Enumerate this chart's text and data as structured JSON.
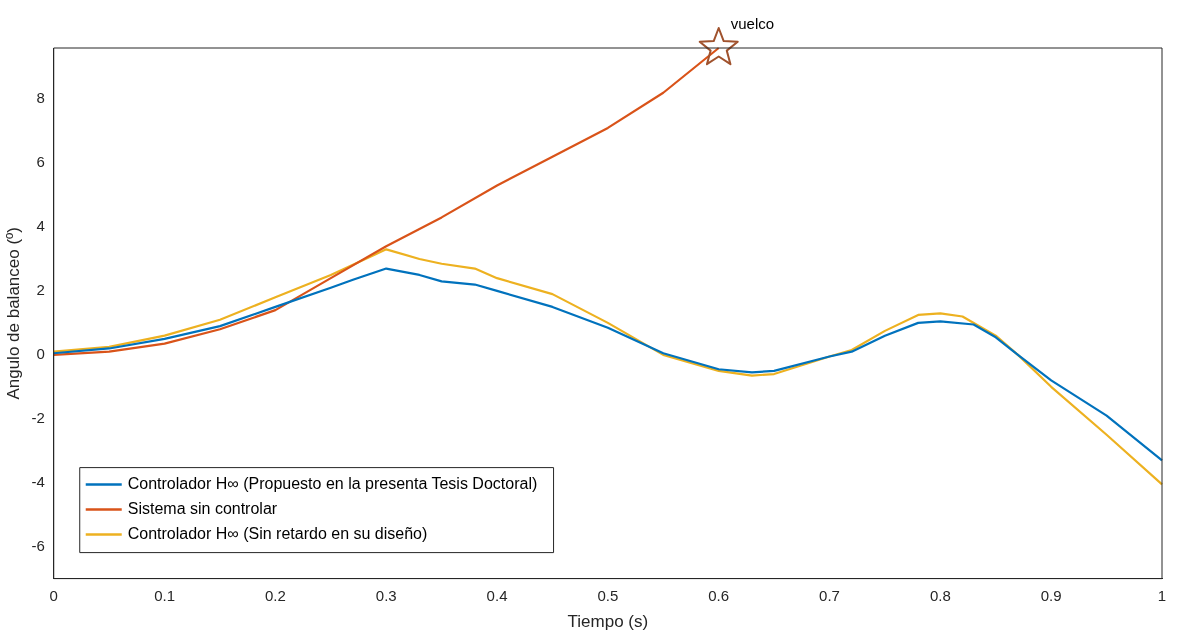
{
  "chart_data": {
    "type": "line",
    "xlabel": "Tiempo (s)",
    "ylabel": "Angulo de balanceo (º)",
    "xlim": [
      0,
      1
    ],
    "xticks": [
      0,
      0.1,
      0.2,
      0.3,
      0.4,
      0.5,
      0.6,
      0.7,
      0.8,
      0.9,
      1
    ],
    "ylim": [
      -7,
      9.6
    ],
    "yticks": [
      -6,
      -4,
      -2,
      0,
      2,
      4,
      6,
      8
    ],
    "grid": false,
    "legend": "bottom left",
    "annotations": [
      {
        "text": "vuelco",
        "x": 0.6,
        "y": 9.6
      }
    ],
    "series": [
      {
        "name": "Controlador H∞ (Propuesto en la presenta Tesis Doctoral)",
        "color": "#0072bd",
        "x": [
          0,
          0.05,
          0.1,
          0.15,
          0.2,
          0.25,
          0.27,
          0.3,
          0.33,
          0.35,
          0.38,
          0.4,
          0.45,
          0.5,
          0.55,
          0.6,
          0.63,
          0.65,
          0.7,
          0.72,
          0.75,
          0.78,
          0.8,
          0.83,
          0.85,
          0.87,
          0.9,
          0.95,
          1
        ],
        "values": [
          0.05,
          0.2,
          0.5,
          0.9,
          1.5,
          2.1,
          2.35,
          2.7,
          2.5,
          2.3,
          2.2,
          2.0,
          1.5,
          0.85,
          0.05,
          -0.45,
          -0.55,
          -0.5,
          -0.05,
          0.1,
          0.6,
          1.0,
          1.05,
          0.95,
          0.55,
          0.0,
          -0.8,
          -1.9,
          -3.3
        ]
      },
      {
        "name": "Sistema sin controlar",
        "color": "#d95319",
        "x": [
          0,
          0.05,
          0.1,
          0.15,
          0.2,
          0.25,
          0.3,
          0.35,
          0.4,
          0.45,
          0.5,
          0.55,
          0.6
        ],
        "values": [
          0,
          0.1,
          0.35,
          0.8,
          1.4,
          2.4,
          3.4,
          4.3,
          5.3,
          6.2,
          7.1,
          8.2,
          9.6
        ]
      },
      {
        "name": "Controlador H∞ (Sin retardo en su diseño)",
        "color": "#edb120",
        "x": [
          0,
          0.05,
          0.1,
          0.15,
          0.2,
          0.25,
          0.3,
          0.33,
          0.35,
          0.38,
          0.4,
          0.45,
          0.5,
          0.55,
          0.6,
          0.63,
          0.65,
          0.7,
          0.72,
          0.75,
          0.78,
          0.8,
          0.82,
          0.85,
          0.87,
          0.9,
          0.95,
          1
        ],
        "values": [
          0.1,
          0.25,
          0.6,
          1.1,
          1.8,
          2.5,
          3.3,
          3.0,
          2.85,
          2.7,
          2.4,
          1.9,
          1.0,
          0.0,
          -0.5,
          -0.65,
          -0.6,
          -0.05,
          0.15,
          0.75,
          1.25,
          1.3,
          1.2,
          0.6,
          0.0,
          -1.0,
          -2.5,
          -4.05
        ]
      },
      {
        "type": "scatter",
        "marker": "star",
        "color": "#a0522d",
        "x": [
          0.6
        ],
        "values": [
          9.6
        ]
      }
    ]
  }
}
